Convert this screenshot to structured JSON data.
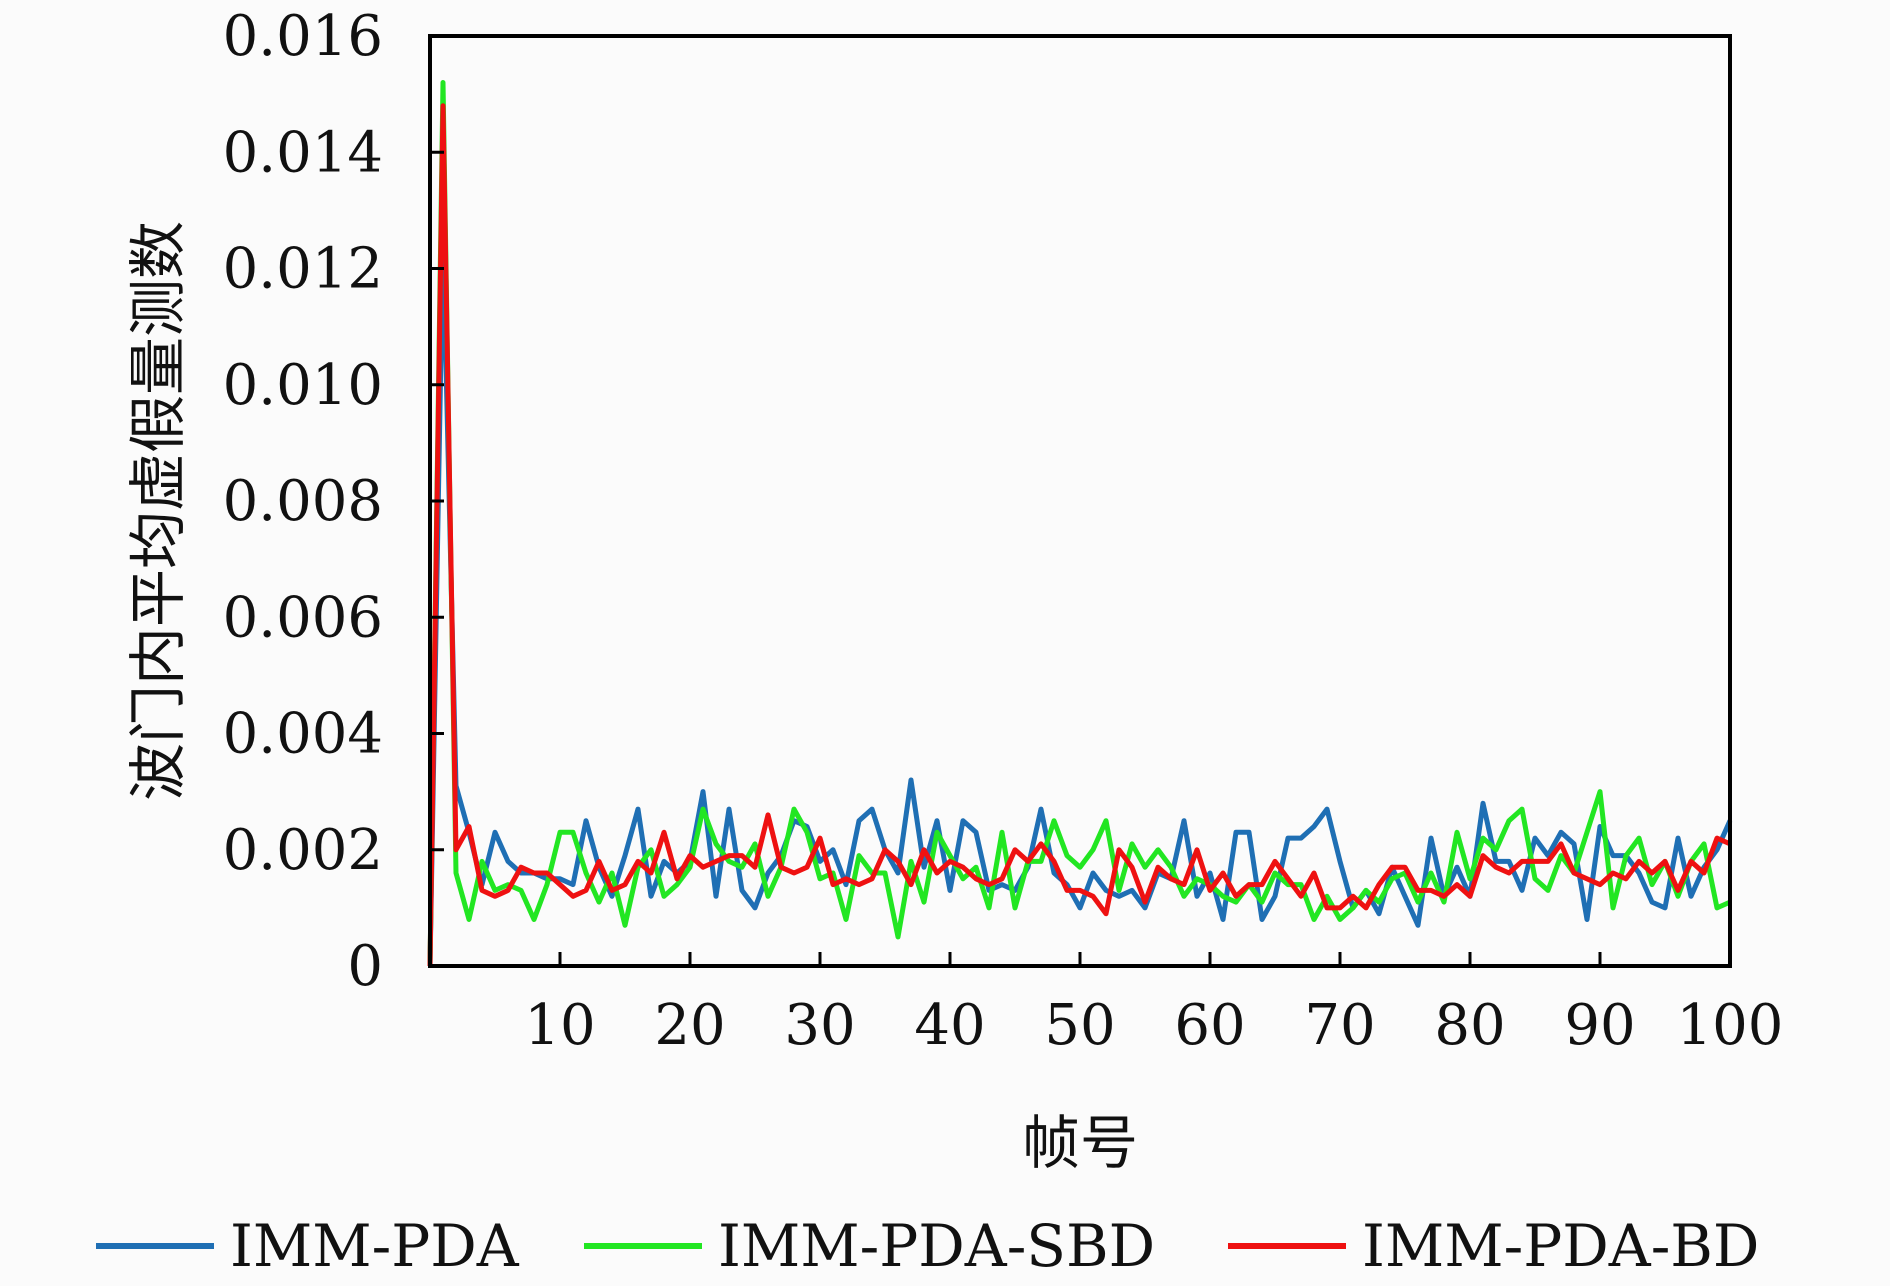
{
  "chart_data": {
    "type": "line",
    "title": "",
    "xlabel": "帧号",
    "ylabel": "波门内平均虚假量测数",
    "xlim": [
      0,
      100
    ],
    "ylim": [
      0,
      0.016
    ],
    "xticks": [
      10,
      20,
      30,
      40,
      50,
      60,
      70,
      80,
      90,
      100
    ],
    "xtick_labels": [
      "10",
      "20",
      "30",
      "40",
      "50",
      "60",
      "70",
      "80",
      "90",
      "100"
    ],
    "yticks": [
      0,
      0.002,
      0.004,
      0.006,
      0.008,
      0.01,
      0.012,
      0.014,
      0.016
    ],
    "ytick_labels": [
      "0",
      "0.002",
      "0.004",
      "0.006",
      "0.008",
      "0.010",
      "0.012",
      "0.014",
      "0.016"
    ],
    "grid": false,
    "legend_position": "bottom",
    "x": [
      0,
      1,
      2,
      3,
      4,
      5,
      6,
      7,
      8,
      9,
      10,
      11,
      12,
      13,
      14,
      15,
      16,
      17,
      18,
      19,
      20,
      21,
      22,
      23,
      24,
      25,
      26,
      27,
      28,
      29,
      30,
      31,
      32,
      33,
      34,
      35,
      36,
      37,
      38,
      39,
      40,
      41,
      42,
      43,
      44,
      45,
      46,
      47,
      48,
      49,
      50,
      51,
      52,
      53,
      54,
      55,
      56,
      57,
      58,
      59,
      60,
      61,
      62,
      63,
      64,
      65,
      66,
      67,
      68,
      69,
      70,
      71,
      72,
      73,
      74,
      75,
      76,
      77,
      78,
      79,
      80,
      81,
      82,
      83,
      84,
      85,
      86,
      87,
      88,
      89,
      90,
      91,
      92,
      93,
      94,
      95,
      96,
      97,
      98,
      99,
      100
    ],
    "series": [
      {
        "name": "IMM-PDA",
        "color": "#1f6fb4",
        "values": [
          0,
          0.0125,
          0.0031,
          0.0023,
          0.0014,
          0.0023,
          0.0018,
          0.0016,
          0.0016,
          0.0015,
          0.0015,
          0.0014,
          0.0025,
          0.0017,
          0.0012,
          0.0019,
          0.0027,
          0.0012,
          0.0018,
          0.0016,
          0.0018,
          0.003,
          0.0012,
          0.0027,
          0.0013,
          0.001,
          0.0016,
          0.0019,
          0.0025,
          0.0024,
          0.0018,
          0.002,
          0.0014,
          0.0025,
          0.0027,
          0.002,
          0.0016,
          0.0032,
          0.0017,
          0.0025,
          0.0013,
          0.0025,
          0.0023,
          0.0013,
          0.0014,
          0.0013,
          0.0017,
          0.0027,
          0.0016,
          0.0014,
          0.001,
          0.0016,
          0.0013,
          0.0012,
          0.0013,
          0.001,
          0.0016,
          0.0015,
          0.0025,
          0.0012,
          0.0016,
          0.0008,
          0.0023,
          0.0023,
          0.0008,
          0.0012,
          0.0022,
          0.0022,
          0.0024,
          0.0027,
          0.0018,
          0.001,
          0.0013,
          0.0009,
          0.0017,
          0.0012,
          0.0007,
          0.0022,
          0.0012,
          0.0017,
          0.0012,
          0.0028,
          0.0018,
          0.0018,
          0.0013,
          0.0022,
          0.0019,
          0.0023,
          0.0021,
          0.0008,
          0.0024,
          0.0019,
          0.0019,
          0.0016,
          0.0011,
          0.001,
          0.0022,
          0.0012,
          0.0017,
          0.002,
          0.0025
        ]
      },
      {
        "name": "IMM-PDA-SBD",
        "color": "#22e622",
        "values": [
          0,
          0.0152,
          0.0016,
          0.0008,
          0.0018,
          0.0013,
          0.0014,
          0.0013,
          0.0008,
          0.0014,
          0.0023,
          0.0023,
          0.0016,
          0.0011,
          0.0016,
          0.0007,
          0.0017,
          0.002,
          0.0012,
          0.0014,
          0.0017,
          0.0027,
          0.0021,
          0.0018,
          0.0017,
          0.0021,
          0.0012,
          0.0017,
          0.0027,
          0.0023,
          0.0015,
          0.0016,
          0.0008,
          0.0019,
          0.0016,
          0.0016,
          0.0005,
          0.0018,
          0.0011,
          0.0023,
          0.0019,
          0.0015,
          0.0017,
          0.001,
          0.0023,
          0.001,
          0.0018,
          0.0018,
          0.0025,
          0.0019,
          0.0017,
          0.002,
          0.0025,
          0.0013,
          0.0021,
          0.0017,
          0.002,
          0.0017,
          0.0012,
          0.0015,
          0.0014,
          0.0012,
          0.0011,
          0.0014,
          0.0011,
          0.0016,
          0.0014,
          0.0014,
          0.0008,
          0.0012,
          0.0008,
          0.001,
          0.0013,
          0.0011,
          0.0015,
          0.0016,
          0.0011,
          0.0016,
          0.0011,
          0.0023,
          0.0015,
          0.0022,
          0.002,
          0.0025,
          0.0027,
          0.0015,
          0.0013,
          0.0019,
          0.0016,
          0.0023,
          0.003,
          0.001,
          0.0019,
          0.0022,
          0.0014,
          0.0018,
          0.0012,
          0.0018,
          0.0021,
          0.001,
          0.0011
        ]
      },
      {
        "name": "IMM-PDA-BD",
        "color": "#ee1111",
        "values": [
          0,
          0.0148,
          0.002,
          0.0024,
          0.0013,
          0.0012,
          0.0013,
          0.0017,
          0.0016,
          0.0016,
          0.0014,
          0.0012,
          0.0013,
          0.0018,
          0.0013,
          0.0014,
          0.0018,
          0.0016,
          0.0023,
          0.0015,
          0.0019,
          0.0017,
          0.0018,
          0.0019,
          0.0019,
          0.0017,
          0.0026,
          0.0017,
          0.0016,
          0.0017,
          0.0022,
          0.0014,
          0.0015,
          0.0014,
          0.0015,
          0.002,
          0.0018,
          0.0014,
          0.002,
          0.0016,
          0.0018,
          0.0017,
          0.0015,
          0.0014,
          0.0015,
          0.002,
          0.0018,
          0.0021,
          0.0018,
          0.0013,
          0.0013,
          0.0012,
          0.0009,
          0.002,
          0.0017,
          0.0011,
          0.0017,
          0.0015,
          0.0014,
          0.002,
          0.0013,
          0.0016,
          0.0012,
          0.0014,
          0.0014,
          0.0018,
          0.0015,
          0.0012,
          0.0016,
          0.001,
          0.001,
          0.0012,
          0.001,
          0.0014,
          0.0017,
          0.0017,
          0.0013,
          0.0013,
          0.0012,
          0.0014,
          0.0012,
          0.0019,
          0.0017,
          0.0016,
          0.0018,
          0.0018,
          0.0018,
          0.0021,
          0.0016,
          0.0015,
          0.0014,
          0.0016,
          0.0015,
          0.0018,
          0.0016,
          0.0018,
          0.0013,
          0.0018,
          0.0016,
          0.0022,
          0.0021
        ]
      }
    ]
  }
}
